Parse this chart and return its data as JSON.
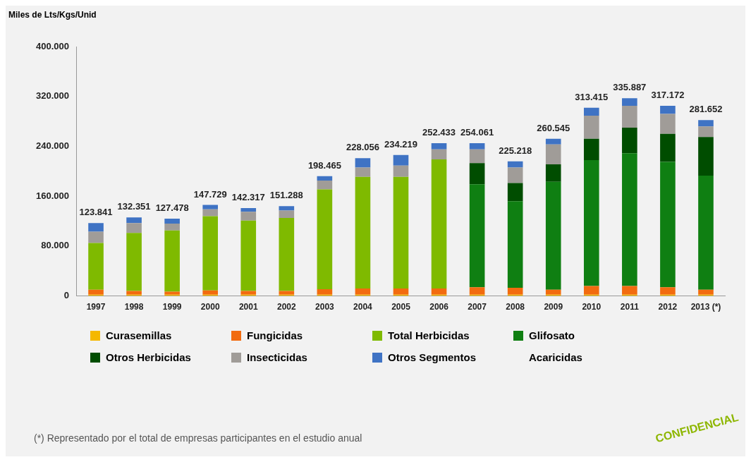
{
  "chart_data": {
    "type": "bar",
    "stacked": true,
    "ylabel": "Miles de Lts/Kgs/Unid",
    "categories": [
      "1997",
      "1998",
      "1999",
      "2000",
      "2001",
      "2002",
      "2003",
      "2004",
      "2005",
      "2006",
      "2007",
      "2008",
      "2009",
      "2010",
      "2011",
      "2012",
      "2013 (*)"
    ],
    "ylim": [
      0,
      400000
    ],
    "yticks": [
      {
        "value": 0,
        "label": "0"
      },
      {
        "value": 80000,
        "label": "80.000"
      },
      {
        "value": 160000,
        "label": "160.000"
      },
      {
        "value": 240000,
        "label": "240.000"
      },
      {
        "value": 320000,
        "label": "320.000"
      },
      {
        "value": 400000,
        "label": "400.000"
      }
    ],
    "grid": false,
    "legend": "bottom",
    "series": [
      {
        "name": "Curasemillas",
        "color": "#f5b800",
        "values": [
          2000,
          2000,
          2000,
          2000,
          2000,
          2000,
          2000,
          2000,
          2000,
          2000,
          2000,
          2000,
          2000,
          2000,
          2000,
          2000,
          2000
        ]
      },
      {
        "name": "Fungicidas",
        "color": "#f26b0f",
        "values": [
          8000,
          6000,
          5000,
          7000,
          6000,
          6000,
          9000,
          10000,
          10000,
          10000,
          12000,
          11000,
          8000,
          14000,
          14000,
          12000,
          8000
        ]
      },
      {
        "name": "Total Herbicidas",
        "color": "#7fba00",
        "values": [
          75000,
          93000,
          98000,
          119000,
          113000,
          117000,
          160000,
          179000,
          179000,
          207000,
          null,
          null,
          null,
          null,
          null,
          null,
          null
        ]
      },
      {
        "name": "Glifosato",
        "color": "#0f7f12",
        "values": [
          null,
          null,
          null,
          null,
          null,
          null,
          null,
          null,
          null,
          null,
          165000,
          139000,
          173000,
          202000,
          213000,
          201000,
          183000
        ]
      },
      {
        "name": "Otros Herbicidas",
        "color": "#004d00",
        "values": [
          null,
          null,
          null,
          null,
          null,
          null,
          null,
          null,
          null,
          null,
          34000,
          29000,
          28000,
          34000,
          41000,
          45000,
          62000
        ]
      },
      {
        "name": "Insecticidas",
        "color": "#a09c98",
        "values": [
          18000,
          16000,
          11000,
          11000,
          14000,
          12000,
          14000,
          15000,
          18000,
          16000,
          22000,
          25000,
          32000,
          37000,
          35000,
          32000,
          17000
        ]
      },
      {
        "name": "Otros Segmentos",
        "color": "#3f73c4",
        "values": [
          14000,
          9000,
          8000,
          7000,
          6000,
          7000,
          7000,
          15000,
          17000,
          10000,
          10000,
          10000,
          9000,
          13000,
          12000,
          13000,
          10000
        ]
      },
      {
        "name": "Acaricidas",
        "values": [
          null,
          null,
          null,
          null,
          null,
          null,
          null,
          null,
          null,
          null,
          null,
          null,
          null,
          null,
          null,
          null,
          null
        ]
      }
    ],
    "annotations": [
      "(*) Representado por el total de empresas participantes en el estudio anual",
      "CONFIDENCIAL",
      "123.841",
      "132.351",
      "127.478",
      "147.729",
      "142.317",
      "151.288",
      "198.465",
      "228.056",
      "234.219",
      "252.433",
      "254.061",
      "225.218",
      "260.545",
      "313.415",
      "335.887",
      "317.172",
      "281.652"
    ]
  }
}
